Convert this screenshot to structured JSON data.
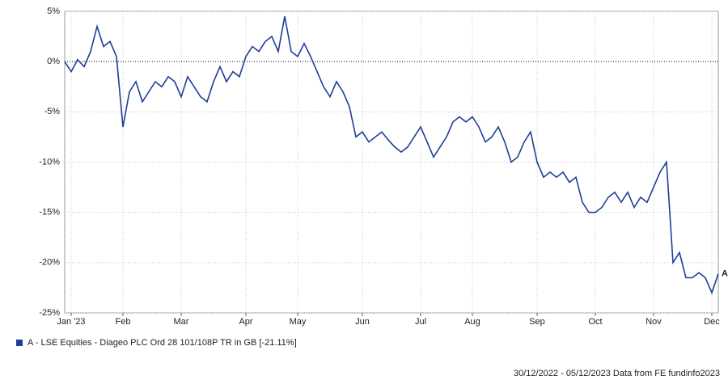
{
  "chart_data": {
    "type": "line",
    "categories": [
      null,
      "Jan '23",
      null,
      null,
      null,
      null,
      null,
      null,
      null,
      "Feb",
      null,
      null,
      null,
      null,
      null,
      null,
      null,
      null,
      "Mar",
      null,
      null,
      null,
      null,
      null,
      null,
      null,
      null,
      null,
      "Apr",
      null,
      null,
      null,
      null,
      null,
      null,
      null,
      "May",
      null,
      null,
      null,
      null,
      null,
      null,
      null,
      null,
      null,
      "Jun",
      null,
      null,
      null,
      null,
      null,
      null,
      null,
      null,
      "Jul",
      null,
      null,
      null,
      null,
      null,
      null,
      null,
      "Aug",
      null,
      null,
      null,
      null,
      null,
      null,
      null,
      null,
      null,
      "Sep",
      null,
      null,
      null,
      null,
      null,
      null,
      null,
      null,
      "Oct",
      null,
      null,
      null,
      null,
      null,
      null,
      null,
      null,
      "Nov",
      null,
      null,
      null,
      null,
      null,
      null,
      null,
      null,
      "Dec",
      null
    ],
    "series": [
      {
        "name": "A - LSE Equities - Diageo PLC Ord 28 101/108P TR in GB [-21.11%]",
        "end_label": "A",
        "color": "#1f3d99",
        "values": [
          0,
          -1,
          0.2,
          -0.5,
          1,
          3.5,
          1.5,
          2,
          0.5,
          -6.5,
          -3,
          -2,
          -4,
          -3,
          -2,
          -2.5,
          -1.5,
          -2,
          -3.5,
          -1.5,
          -2.5,
          -3.5,
          -4,
          -2,
          -0.5,
          -2,
          -1,
          -1.5,
          0.5,
          1.5,
          1,
          2,
          2.5,
          1,
          4.5,
          1,
          0.5,
          1.8,
          0.5,
          -1,
          -2.5,
          -3.5,
          -2,
          -3,
          -4.5,
          -7.5,
          -7,
          -8,
          -7.5,
          -7,
          -7.8,
          -8.5,
          -9,
          -8.5,
          -7.5,
          -6.5,
          -8,
          -9.5,
          -8.5,
          -7.5,
          -6,
          -5.5,
          -6,
          -5.5,
          -6.5,
          -8,
          -7.5,
          -6.5,
          -8,
          -10,
          -9.5,
          -8,
          -7,
          -10,
          -11.5,
          -11,
          -11.5,
          -11,
          -12,
          -11.5,
          -14,
          -15,
          -15,
          -14.5,
          -13.5,
          -13,
          -14,
          -13,
          -14.5,
          -13.5,
          -14,
          -12.5,
          -11,
          -10,
          -20,
          -19,
          -21.5,
          -21.5,
          -21,
          -21.5,
          -23,
          -21.11
        ]
      }
    ],
    "ylim": [
      -25,
      5
    ],
    "yticks": [
      {
        "value": 5,
        "label": "5%"
      },
      {
        "value": 0,
        "label": "0%"
      },
      {
        "value": -5,
        "label": "-5%"
      },
      {
        "value": -10,
        "label": "-10%"
      },
      {
        "value": -15,
        "label": "-15%"
      },
      {
        "value": -20,
        "label": "-20%"
      },
      {
        "value": -25,
        "label": "-25%"
      }
    ],
    "grid": true,
    "footer": "30/12/2022 - 05/12/2023 Data from FE fundinfo2023"
  }
}
